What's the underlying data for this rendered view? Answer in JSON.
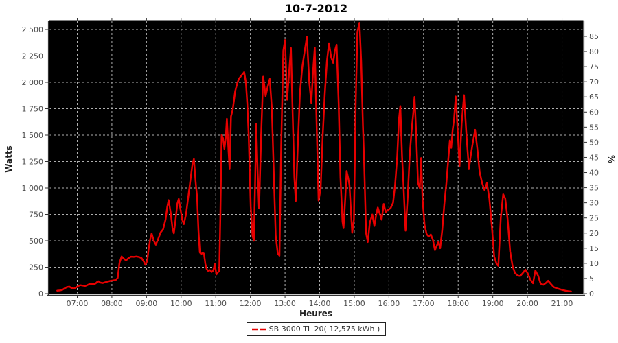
{
  "title": "10-7-2012",
  "chart_data": {
    "type": "line",
    "title": "10-7-2012",
    "xlabel": "Heures",
    "ylabel_left": "Watts",
    "ylabel_right": "%",
    "plot_bg": "#000000",
    "grid": {
      "show": true,
      "color": "#b0b0b0",
      "style": "dashed"
    },
    "x_axis": {
      "tick_hours": [
        7,
        8,
        9,
        10,
        11,
        12,
        13,
        14,
        15,
        16,
        17,
        18,
        19,
        20,
        21
      ],
      "tick_labels": [
        "07:00",
        "08:00",
        "09:00",
        "10:00",
        "11:00",
        "12:00",
        "13:00",
        "14:00",
        "15:00",
        "16:00",
        "17:00",
        "18:00",
        "19:00",
        "20:00",
        "21:00"
      ]
    },
    "y_axis_left": {
      "min": 0,
      "max": 2584,
      "tick_step": 250,
      "tick_values": [
        0,
        250,
        500,
        750,
        1000,
        1250,
        1500,
        1750,
        2000,
        2250,
        2500
      ],
      "tick_labels": [
        "0",
        "250",
        "500",
        "750",
        "1 000",
        "1 250",
        "1 500",
        "1 750",
        "2 000",
        "2 250",
        "2 500"
      ]
    },
    "y_axis_right": {
      "min": 0,
      "max": 90,
      "tick_step": 5,
      "tick_values": [
        0,
        5,
        10,
        15,
        20,
        25,
        30,
        35,
        40,
        45,
        50,
        55,
        60,
        65,
        70,
        75,
        80,
        85
      ],
      "tick_labels": [
        "0",
        "5",
        "10",
        "15",
        "20",
        "25",
        "30",
        "35",
        "40",
        "45",
        "50",
        "55",
        "60",
        "65",
        "70",
        "75",
        "80",
        "85"
      ]
    },
    "legend": {
      "label": "SB 3000 TL 20( 12,575 kWh )",
      "position": "bottom-center",
      "color": "#e60000"
    },
    "series": [
      {
        "name": "SB 3000 TL 20( 12,575 kWh )",
        "color": "#e60000",
        "points": [
          [
            6.42,
            28
          ],
          [
            6.5,
            30
          ],
          [
            6.57,
            36
          ],
          [
            6.63,
            48
          ],
          [
            6.7,
            62
          ],
          [
            6.77,
            66
          ],
          [
            6.83,
            54
          ],
          [
            6.9,
            48
          ],
          [
            6.97,
            60
          ],
          [
            7.03,
            72
          ],
          [
            7.09,
            80
          ],
          [
            7.16,
            76
          ],
          [
            7.23,
            72
          ],
          [
            7.3,
            82
          ],
          [
            7.38,
            94
          ],
          [
            7.46,
            88
          ],
          [
            7.53,
            96
          ],
          [
            7.6,
            118
          ],
          [
            7.67,
            104
          ],
          [
            7.74,
            100
          ],
          [
            7.81,
            108
          ],
          [
            7.88,
            114
          ],
          [
            7.95,
            120
          ],
          [
            8.03,
            125
          ],
          [
            8.11,
            128
          ],
          [
            8.17,
            150
          ],
          [
            8.22,
            290
          ],
          [
            8.28,
            352
          ],
          [
            8.34,
            332
          ],
          [
            8.41,
            314
          ],
          [
            8.48,
            336
          ],
          [
            8.55,
            350
          ],
          [
            8.63,
            348
          ],
          [
            8.71,
            352
          ],
          [
            8.79,
            347
          ],
          [
            8.86,
            336
          ],
          [
            8.93,
            300
          ],
          [
            8.97,
            272
          ],
          [
            9.02,
            310
          ],
          [
            9.06,
            420
          ],
          [
            9.11,
            520
          ],
          [
            9.15,
            568
          ],
          [
            9.21,
            500
          ],
          [
            9.27,
            463
          ],
          [
            9.34,
            520
          ],
          [
            9.41,
            580
          ],
          [
            9.48,
            610
          ],
          [
            9.55,
            700
          ],
          [
            9.6,
            820
          ],
          [
            9.64,
            885
          ],
          [
            9.7,
            760
          ],
          [
            9.75,
            620
          ],
          [
            9.79,
            571
          ],
          [
            9.84,
            700
          ],
          [
            9.89,
            850
          ],
          [
            9.93,
            896
          ],
          [
            9.99,
            780
          ],
          [
            10.04,
            690
          ],
          [
            10.08,
            658
          ],
          [
            10.14,
            750
          ],
          [
            10.2,
            900
          ],
          [
            10.27,
            1080
          ],
          [
            10.33,
            1230
          ],
          [
            10.37,
            1275
          ],
          [
            10.42,
            1050
          ],
          [
            10.46,
            918
          ],
          [
            10.5,
            600
          ],
          [
            10.54,
            390
          ],
          [
            10.58,
            375
          ],
          [
            10.62,
            386
          ],
          [
            10.66,
            378
          ],
          [
            10.7,
            280
          ],
          [
            10.74,
            230
          ],
          [
            10.78,
            215
          ],
          [
            10.83,
            222
          ],
          [
            10.88,
            205
          ],
          [
            10.93,
            218
          ],
          [
            10.97,
            280
          ],
          [
            11.02,
            182
          ],
          [
            11.06,
            200
          ],
          [
            11.1,
            215
          ],
          [
            11.13,
            700
          ],
          [
            11.17,
            1502
          ],
          [
            11.21,
            1470
          ],
          [
            11.25,
            1370
          ],
          [
            11.29,
            1480
          ],
          [
            11.32,
            1656
          ],
          [
            11.36,
            1400
          ],
          [
            11.4,
            1178
          ],
          [
            11.44,
            1677
          ],
          [
            11.49,
            1740
          ],
          [
            11.56,
            1916
          ],
          [
            11.62,
            1990
          ],
          [
            11.67,
            2035
          ],
          [
            11.73,
            2060
          ],
          [
            11.78,
            2080
          ],
          [
            11.82,
            2097
          ],
          [
            11.87,
            2000
          ],
          [
            11.91,
            1800
          ],
          [
            11.95,
            1510
          ],
          [
            12.01,
            820
          ],
          [
            12.06,
            550
          ],
          [
            12.1,
            500
          ],
          [
            12.14,
            1100
          ],
          [
            12.17,
            1606
          ],
          [
            12.21,
            1150
          ],
          [
            12.25,
            806
          ],
          [
            12.31,
            1500
          ],
          [
            12.37,
            2054
          ],
          [
            12.44,
            1870
          ],
          [
            12.5,
            1960
          ],
          [
            12.56,
            2032
          ],
          [
            12.62,
            1750
          ],
          [
            12.68,
            1100
          ],
          [
            12.73,
            552
          ],
          [
            12.79,
            380
          ],
          [
            12.84,
            360
          ],
          [
            12.89,
            1400
          ],
          [
            12.95,
            2300
          ],
          [
            13.0,
            2400
          ],
          [
            13.06,
            1835
          ],
          [
            13.12,
            2100
          ],
          [
            13.17,
            2325
          ],
          [
            13.22,
            1700
          ],
          [
            13.27,
            1100
          ],
          [
            13.31,
            876
          ],
          [
            13.37,
            1400
          ],
          [
            13.43,
            1900
          ],
          [
            13.5,
            2150
          ],
          [
            13.57,
            2300
          ],
          [
            13.63,
            2430
          ],
          [
            13.7,
            2000
          ],
          [
            13.76,
            1805
          ],
          [
            13.81,
            2100
          ],
          [
            13.86,
            2330
          ],
          [
            13.92,
            1500
          ],
          [
            13.97,
            880
          ],
          [
            14.03,
            1000
          ],
          [
            14.09,
            1500
          ],
          [
            14.15,
            1900
          ],
          [
            14.21,
            2200
          ],
          [
            14.27,
            2370
          ],
          [
            14.33,
            2240
          ],
          [
            14.39,
            2184
          ],
          [
            14.44,
            2300
          ],
          [
            14.49,
            2356
          ],
          [
            14.55,
            1800
          ],
          [
            14.6,
            1100
          ],
          [
            14.66,
            682
          ],
          [
            14.69,
            620
          ],
          [
            14.74,
            900
          ],
          [
            14.78,
            1160
          ],
          [
            14.82,
            1100
          ],
          [
            14.86,
            1030
          ],
          [
            14.9,
            800
          ],
          [
            14.94,
            575
          ],
          [
            14.99,
            700
          ],
          [
            15.04,
            1800
          ],
          [
            15.09,
            2476
          ],
          [
            15.15,
            2563
          ],
          [
            15.2,
            2200
          ],
          [
            15.25,
            1600
          ],
          [
            15.29,
            1180
          ],
          [
            15.34,
            574
          ],
          [
            15.39,
            488
          ],
          [
            15.45,
            672
          ],
          [
            15.52,
            748
          ],
          [
            15.58,
            640
          ],
          [
            15.63,
            740
          ],
          [
            15.68,
            815
          ],
          [
            15.73,
            760
          ],
          [
            15.79,
            700
          ],
          [
            15.85,
            848
          ],
          [
            15.91,
            772
          ],
          [
            15.98,
            794
          ],
          [
            16.05,
            810
          ],
          [
            16.12,
            860
          ],
          [
            16.18,
            1030
          ],
          [
            16.24,
            1300
          ],
          [
            16.29,
            1650
          ],
          [
            16.33,
            1775
          ],
          [
            16.38,
            1300
          ],
          [
            16.42,
            1030
          ],
          [
            16.48,
            596
          ],
          [
            16.54,
            900
          ],
          [
            16.6,
            1300
          ],
          [
            16.65,
            1520
          ],
          [
            16.7,
            1700
          ],
          [
            16.74,
            1862
          ],
          [
            16.79,
            1500
          ],
          [
            16.84,
            1048
          ],
          [
            16.89,
            1000
          ],
          [
            16.93,
            1283
          ],
          [
            16.97,
            900
          ],
          [
            17.03,
            650
          ],
          [
            17.09,
            563
          ],
          [
            17.15,
            540
          ],
          [
            17.21,
            560
          ],
          [
            17.27,
            509
          ],
          [
            17.33,
            412
          ],
          [
            17.39,
            460
          ],
          [
            17.43,
            488
          ],
          [
            17.48,
            430
          ],
          [
            17.54,
            600
          ],
          [
            17.6,
            850
          ],
          [
            17.66,
            1048
          ],
          [
            17.71,
            1250
          ],
          [
            17.76,
            1450
          ],
          [
            17.8,
            1380
          ],
          [
            17.84,
            1550
          ],
          [
            17.88,
            1645
          ],
          [
            17.93,
            1866
          ],
          [
            17.99,
            1520
          ],
          [
            18.04,
            1204
          ],
          [
            18.1,
            1610
          ],
          [
            18.17,
            1878
          ],
          [
            18.24,
            1500
          ],
          [
            18.31,
            1178
          ],
          [
            18.36,
            1300
          ],
          [
            18.41,
            1404
          ],
          [
            18.49,
            1551
          ],
          [
            18.56,
            1350
          ],
          [
            18.62,
            1150
          ],
          [
            18.69,
            1050
          ],
          [
            18.76,
            980
          ],
          [
            18.83,
            1046
          ],
          [
            18.9,
            900
          ],
          [
            18.97,
            650
          ],
          [
            19.04,
            352
          ],
          [
            19.11,
            280
          ],
          [
            19.16,
            262
          ],
          [
            19.23,
            720
          ],
          [
            19.3,
            940
          ],
          [
            19.36,
            900
          ],
          [
            19.43,
            700
          ],
          [
            19.5,
            400
          ],
          [
            19.57,
            262
          ],
          [
            19.64,
            196
          ],
          [
            19.72,
            170
          ],
          [
            19.79,
            166
          ],
          [
            19.87,
            196
          ],
          [
            19.94,
            226
          ],
          [
            20.01,
            190
          ],
          [
            20.09,
            130
          ],
          [
            20.16,
            98
          ],
          [
            20.23,
            218
          ],
          [
            20.31,
            168
          ],
          [
            20.38,
            94
          ],
          [
            20.46,
            84
          ],
          [
            20.53,
            100
          ],
          [
            20.6,
            122
          ],
          [
            20.68,
            90
          ],
          [
            20.76,
            62
          ],
          [
            20.85,
            50
          ],
          [
            20.93,
            42
          ],
          [
            21.02,
            34
          ],
          [
            21.1,
            27
          ],
          [
            21.18,
            23
          ],
          [
            21.26,
            20
          ]
        ]
      }
    ]
  }
}
